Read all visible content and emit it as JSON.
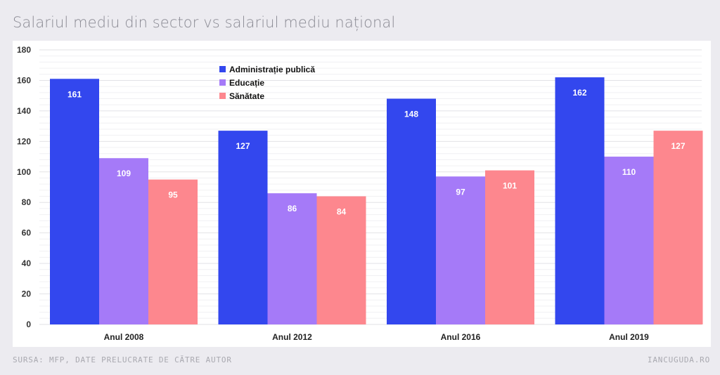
{
  "page": {
    "title": "Salariul mediu din sector vs salariul mediu național",
    "source": "SURSA: MFP, DATE PRELUCRATE DE CĂTRE AUTOR",
    "site": "IANCUGUDA.RO"
  },
  "chart_data": {
    "type": "bar",
    "title": "Salariul mediu din sector vs salariul mediu național",
    "xlabel": "",
    "ylabel": "",
    "ylim": [
      0,
      180
    ],
    "yticks": [
      0,
      20,
      40,
      60,
      80,
      100,
      120,
      140,
      160,
      180
    ],
    "grid": true,
    "legend_position": "top-center",
    "categories": [
      "Anul 2008",
      "Anul 2012",
      "Anul 2016",
      "Anul 2019"
    ],
    "series": [
      {
        "name": "Administrație publică",
        "color": "#3347ee",
        "values": [
          161,
          127,
          148,
          162
        ]
      },
      {
        "name": "Educație",
        "color": "#a57af8",
        "values": [
          109,
          86,
          97,
          110
        ]
      },
      {
        "name": "Sănătate",
        "color": "#fd878e",
        "values": [
          95,
          84,
          101,
          127
        ]
      }
    ]
  }
}
